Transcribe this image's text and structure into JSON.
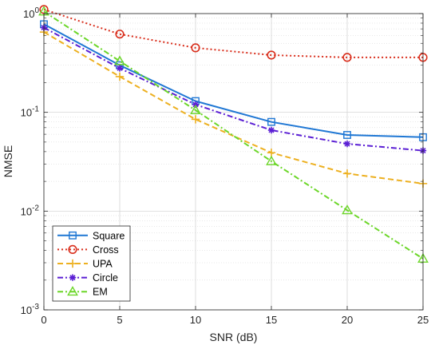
{
  "chart_data": {
    "type": "line",
    "xlabel": "SNR (dB)",
    "ylabel": "NMSE",
    "xlim": [
      0,
      25
    ],
    "ylim": [
      0.001,
      1
    ],
    "yscale": "log",
    "grid": true,
    "minor_grid": true,
    "legend_position": "bottom-left",
    "x": [
      0,
      5,
      10,
      15,
      20,
      25
    ],
    "xticks": [
      "0",
      "5",
      "10",
      "15",
      "20",
      "25"
    ],
    "yticks": [
      {
        "value": 0.001,
        "base": "10",
        "exp": "-3"
      },
      {
        "value": 0.01,
        "base": "10",
        "exp": "-2"
      },
      {
        "value": 0.1,
        "base": "10",
        "exp": "-1"
      },
      {
        "value": 1,
        "base": "10",
        "exp": "0"
      }
    ],
    "series": [
      {
        "name": "Square",
        "color": "#1f77d4",
        "dash": "solid",
        "marker": "square",
        "values": [
          0.78,
          0.3,
          0.13,
          0.08,
          0.059,
          0.056
        ]
      },
      {
        "name": "Cross",
        "color": "#d92e1c",
        "dash": "dotted",
        "marker": "circle",
        "values": [
          1.1,
          0.62,
          0.45,
          0.38,
          0.36,
          0.36
        ]
      },
      {
        "name": "UPA",
        "color": "#edb020",
        "dash": "dashed",
        "marker": "plus",
        "values": [
          0.65,
          0.23,
          0.085,
          0.039,
          0.024,
          0.019
        ]
      },
      {
        "name": "Circle",
        "color": "#5b1fd4",
        "dash": "dashdot",
        "marker": "asterisk",
        "values": [
          0.72,
          0.28,
          0.12,
          0.066,
          0.048,
          0.041
        ]
      },
      {
        "name": "EM",
        "color": "#6cd629",
        "dash": "dashdot",
        "marker": "triangle",
        "values": [
          1.05,
          0.33,
          0.105,
          0.032,
          0.0102,
          0.0033
        ]
      }
    ]
  }
}
